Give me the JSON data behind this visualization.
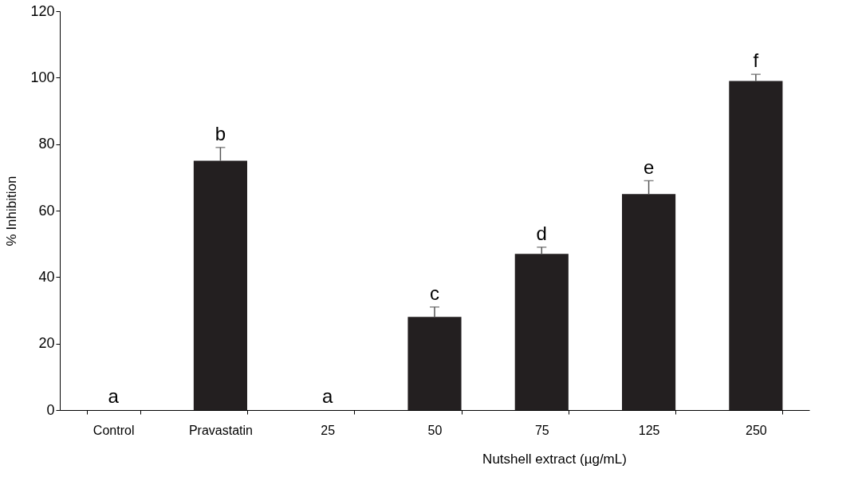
{
  "chart_data": {
    "type": "bar",
    "xlabel": "Nutshell  extract (µg/mL)",
    "ylabel": "% Inhibition",
    "categories": [
      "Control",
      "Pravastatin",
      "25",
      "50",
      "75",
      "125",
      "250"
    ],
    "values": [
      0,
      75,
      0,
      28,
      47,
      65,
      99
    ],
    "errors": [
      null,
      [
        75,
        79
      ],
      null,
      [
        28,
        31
      ],
      [
        47,
        49
      ],
      [
        65,
        69
      ],
      [
        99,
        101
      ]
    ],
    "color": "#231f20",
    "ylim": [
      0,
      120
    ],
    "yticks": [
      0,
      20,
      40,
      60,
      80,
      100,
      120
    ],
    "grid": false,
    "annotations": [
      {
        "text": "a",
        "x": "Control",
        "y": 0
      },
      {
        "text": "b",
        "x": "Pravastatin",
        "y": 79
      },
      {
        "text": "a",
        "x": "25",
        "y": 0
      },
      {
        "text": "c",
        "x": "50",
        "y": 31
      },
      {
        "text": "d",
        "x": "75",
        "y": 49
      },
      {
        "text": "e",
        "x": "125",
        "y": 69
      },
      {
        "text": "f",
        "x": "250",
        "y": 101
      }
    ]
  }
}
